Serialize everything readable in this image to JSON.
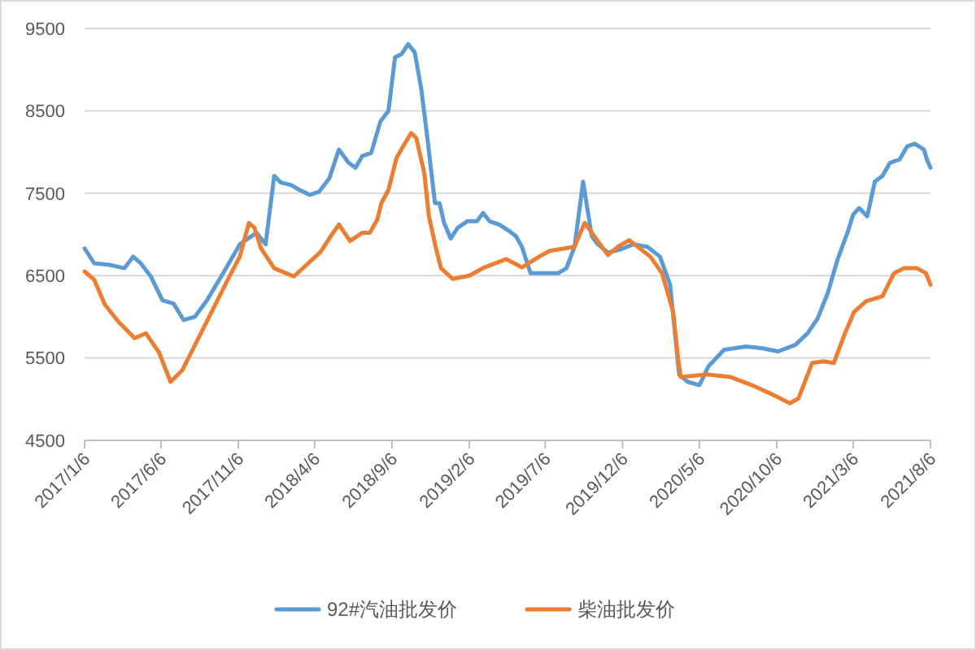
{
  "chart_data": {
    "type": "line",
    "xlim": [
      "2017-01-06",
      "2021-08-06"
    ],
    "xticks": [
      {
        "value": "2017-01-06",
        "label": "2017/1/6"
      },
      {
        "value": "2017-06-06",
        "label": "2017/6/6"
      },
      {
        "value": "2017-11-06",
        "label": "2017/11/6"
      },
      {
        "value": "2018-04-06",
        "label": "2018/4/6"
      },
      {
        "value": "2018-09-06",
        "label": "2018/9/6"
      },
      {
        "value": "2019-02-06",
        "label": "2019/2/6"
      },
      {
        "value": "2019-07-06",
        "label": "2019/7/6"
      },
      {
        "value": "2019-12-06",
        "label": "2019/12/6"
      },
      {
        "value": "2020-05-06",
        "label": "2020/5/6"
      },
      {
        "value": "2020-10-06",
        "label": "2020/10/6"
      },
      {
        "value": "2021-03-06",
        "label": "2021/3/6"
      },
      {
        "value": "2021-08-06",
        "label": "2021/8/6"
      }
    ],
    "ylim": [
      4500,
      9500
    ],
    "yticks": [
      4500,
      5500,
      6500,
      7500,
      8500,
      9500
    ],
    "grid": "y",
    "legend": "bottom",
    "series": [
      {
        "name": "92#汽油批发价",
        "color": "#5b9bd5",
        "x": [
          "2017-01-06",
          "2017-01-25",
          "2017-02-24",
          "2017-03-26",
          "2017-04-12",
          "2017-04-27",
          "2017-05-17",
          "2017-06-09",
          "2017-07-01",
          "2017-07-21",
          "2017-08-12",
          "2017-09-05",
          "2017-10-07",
          "2017-11-09",
          "2017-12-12",
          "2017-12-30",
          "2018-01-16",
          "2018-01-29",
          "2018-02-18",
          "2018-03-07",
          "2018-03-27",
          "2018-04-15",
          "2018-05-05",
          "2018-05-24",
          "2018-06-12",
          "2018-06-26",
          "2018-07-09",
          "2018-07-27",
          "2018-08-14",
          "2018-08-30",
          "2018-09-12",
          "2018-09-25",
          "2018-10-08",
          "2018-10-21",
          "2018-11-03",
          "2018-11-15",
          "2018-11-30",
          "2018-12-09",
          "2018-12-18",
          "2018-12-31",
          "2019-01-14",
          "2019-02-02",
          "2019-02-21",
          "2019-03-05",
          "2019-03-18",
          "2019-04-06",
          "2019-04-26",
          "2019-05-09",
          "2019-05-21",
          "2019-06-07",
          "2019-08-01",
          "2019-08-17",
          "2019-09-02",
          "2019-09-19",
          "2019-10-06",
          "2019-10-18",
          "2019-11-07",
          "2019-12-03",
          "2019-12-27",
          "2020-01-24",
          "2020-02-18",
          "2020-03-09",
          "2020-03-27",
          "2020-04-13",
          "2020-05-06",
          "2020-05-24",
          "2020-06-24",
          "2020-08-06",
          "2020-09-06",
          "2020-10-09",
          "2020-11-12",
          "2020-12-06",
          "2020-12-26",
          "2021-01-15",
          "2021-02-03",
          "2021-02-24",
          "2021-03-06",
          "2021-03-18",
          "2021-04-03",
          "2021-04-18",
          "2021-05-03",
          "2021-05-18",
          "2021-06-06",
          "2021-06-21",
          "2021-07-06",
          "2021-07-24",
          "2021-07-30",
          "2021-08-06"
        ],
        "values": [
          6830,
          6650,
          6630,
          6590,
          6730,
          6650,
          6490,
          6200,
          6160,
          5960,
          6000,
          6200,
          6530,
          6880,
          7020,
          6880,
          7710,
          7630,
          7600,
          7540,
          7480,
          7520,
          7680,
          8030,
          7870,
          7810,
          7950,
          7990,
          8370,
          8500,
          9150,
          9190,
          9310,
          9210,
          8760,
          8170,
          7380,
          7380,
          7140,
          6950,
          7080,
          7160,
          7160,
          7260,
          7160,
          7120,
          7040,
          6980,
          6850,
          6530,
          6530,
          6590,
          6850,
          7640,
          6980,
          6880,
          6780,
          6820,
          6880,
          6850,
          6730,
          6390,
          5300,
          5210,
          5170,
          5400,
          5600,
          5640,
          5620,
          5580,
          5660,
          5800,
          5980,
          6290,
          6690,
          7040,
          7240,
          7320,
          7220,
          7640,
          7710,
          7870,
          7910,
          8070,
          8100,
          8030,
          7910,
          7810
        ]
      },
      {
        "name": "柴油批发价",
        "color": "#ed7d31",
        "x": [
          "2017-01-06",
          "2017-01-25",
          "2017-02-15",
          "2017-03-14",
          "2017-04-15",
          "2017-05-07",
          "2017-06-02",
          "2017-06-25",
          "2017-07-18",
          "2017-08-19",
          "2017-09-21",
          "2017-10-17",
          "2017-11-09",
          "2017-11-27",
          "2017-12-08",
          "2017-12-21",
          "2018-01-16",
          "2018-02-24",
          "2018-04-18",
          "2018-05-08",
          "2018-05-24",
          "2018-06-15",
          "2018-07-09",
          "2018-07-24",
          "2018-08-08",
          "2018-08-16",
          "2018-08-30",
          "2018-09-15",
          "2018-10-01",
          "2018-10-14",
          "2018-10-24",
          "2018-11-09",
          "2018-11-18",
          "2018-12-02",
          "2018-12-12",
          "2019-01-04",
          "2019-02-06",
          "2019-03-08",
          "2019-04-20",
          "2019-05-21",
          "2019-06-24",
          "2019-07-15",
          "2019-09-02",
          "2019-09-22",
          "2019-11-07",
          "2019-11-27",
          "2019-12-19",
          "2020-01-30",
          "2020-02-22",
          "2020-03-15",
          "2020-03-24",
          "2020-03-30",
          "2020-05-21",
          "2020-07-06",
          "2020-08-18",
          "2020-09-30",
          "2020-11-01",
          "2020-11-18",
          "2020-12-15",
          "2021-01-06",
          "2021-01-27",
          "2021-02-18",
          "2021-03-08",
          "2021-04-01",
          "2021-05-03",
          "2021-05-26",
          "2021-06-15",
          "2021-07-10",
          "2021-07-28",
          "2021-08-06"
        ],
        "values": [
          6550,
          6450,
          6150,
          5940,
          5740,
          5800,
          5570,
          5210,
          5350,
          5740,
          6140,
          6460,
          6730,
          7140,
          7080,
          6830,
          6590,
          6490,
          6790,
          6980,
          7120,
          6920,
          7020,
          7020,
          7180,
          7380,
          7540,
          7930,
          8100,
          8230,
          8170,
          7740,
          7220,
          6830,
          6590,
          6460,
          6500,
          6600,
          6700,
          6600,
          6730,
          6800,
          6850,
          7140,
          6750,
          6850,
          6930,
          6730,
          6530,
          6060,
          5540,
          5270,
          5300,
          5270,
          5170,
          5050,
          4950,
          5010,
          5440,
          5460,
          5440,
          5800,
          6060,
          6190,
          6250,
          6530,
          6590,
          6590,
          6530,
          6390
        ]
      }
    ]
  }
}
